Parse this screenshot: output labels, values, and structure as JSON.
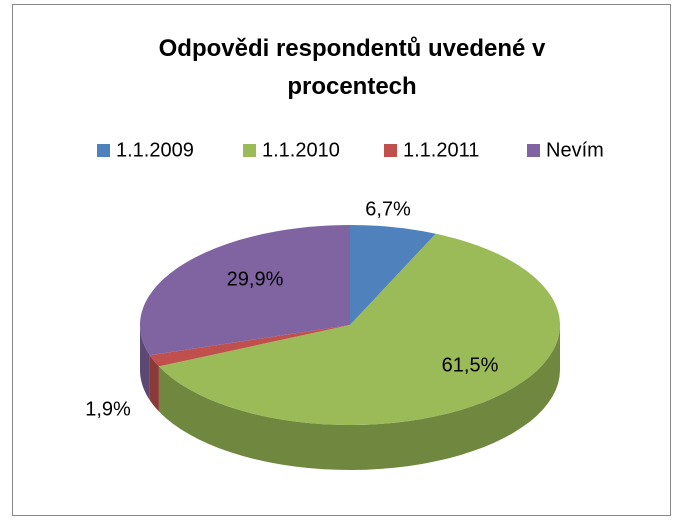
{
  "chart_data": {
    "type": "pie",
    "title": "Odpovědi respondentů uvedené v procentech",
    "categories": [
      "1.1.2009",
      "1.1.2010",
      "1.1.2011",
      "Nevím"
    ],
    "values": [
      6.7,
      61.5,
      1.9,
      29.9
    ],
    "value_labels": [
      "6,7%",
      "61,5%",
      "1,9%",
      "29,9%"
    ],
    "colors": [
      "#4f81bd",
      "#9bbb59",
      "#c0504d",
      "#8064a2"
    ],
    "legend": "top"
  }
}
